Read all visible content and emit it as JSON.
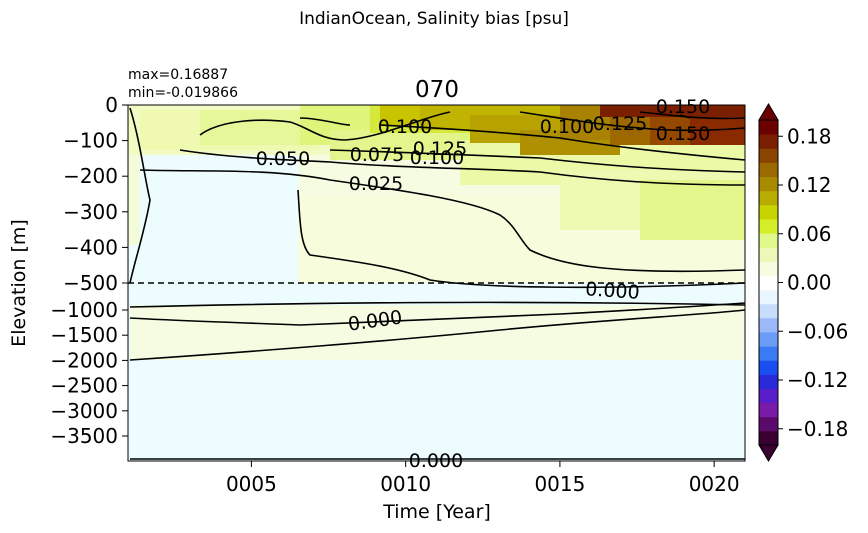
{
  "chart_data": {
    "type": "heatmap",
    "suptitle": "IndianOcean, Salinity bias [psu]",
    "title": "070",
    "stats": {
      "max_label": "max=0.16887",
      "min_label": "min=-0.019866"
    },
    "xlabel": "Time [Year]",
    "ylabel": "Elevation [m]",
    "xlim": [
      1,
      21
    ],
    "x_ticks": [
      {
        "value": 5,
        "label": "0005"
      },
      {
        "value": 10,
        "label": "0010"
      },
      {
        "value": 15,
        "label": "0015"
      },
      {
        "value": 20,
        "label": "0020"
      }
    ],
    "y_ticks_upper": [
      "0",
      "−100",
      "−200",
      "−300",
      "−400",
      "−500"
    ],
    "y_ticks_lower": [
      "−1000",
      "−1500",
      "−2000",
      "−2500",
      "−3000",
      "−3500"
    ],
    "split_depth": "-500",
    "colorbar": {
      "vmin": -0.2,
      "vmax": 0.2,
      "ticks": [
        {
          "value": 0.18,
          "label": "0.18"
        },
        {
          "value": 0.12,
          "label": "0.12"
        },
        {
          "value": 0.06,
          "label": "0.06"
        },
        {
          "value": 0.0,
          "label": "0.00"
        },
        {
          "value": -0.06,
          "label": "−0.06"
        },
        {
          "value": -0.12,
          "label": "−0.12"
        },
        {
          "value": -0.18,
          "label": "−0.18"
        }
      ],
      "colors": [
        "#3a0032",
        "#5a0a6a",
        "#7a1aa8",
        "#5a1ec8",
        "#2a2ad8",
        "#1a4ef0",
        "#3a7af5",
        "#6a9cf8",
        "#9ab8fa",
        "#c8dcfc",
        "#eaf6ff",
        "#ffffff",
        "#f6fce0",
        "#eef7b8",
        "#e0f78a",
        "#d4ee2a",
        "#c8d400",
        "#b8ac00",
        "#a88a00",
        "#9a6a00",
        "#8a4400",
        "#7a2000",
        "#6a0000"
      ]
    },
    "contour_labels": [
      "0.100",
      "0.125",
      "0.150",
      "0.100",
      "0.125",
      "0.150",
      "0.050",
      "0.075",
      "0.100",
      "0.025",
      "0.000",
      "0.000",
      "0.000"
    ]
  }
}
